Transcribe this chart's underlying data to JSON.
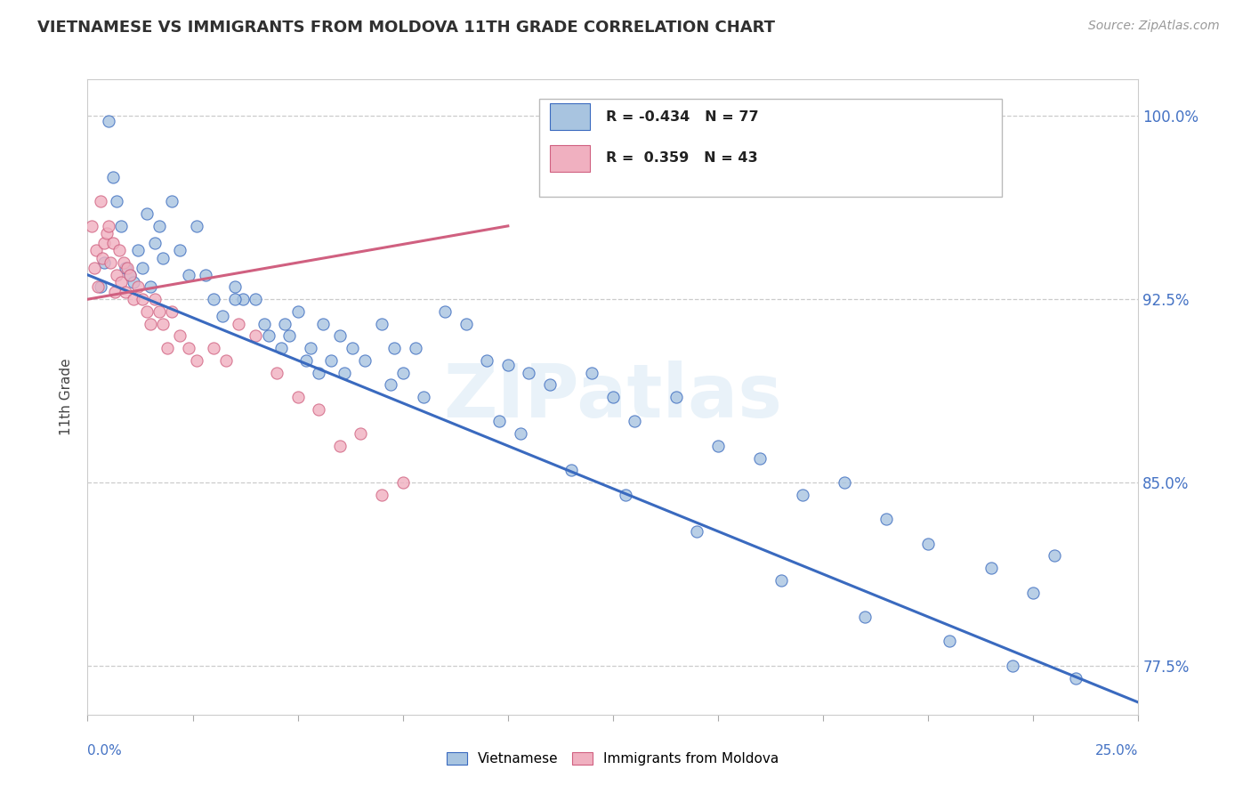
{
  "title": "VIETNAMESE VS IMMIGRANTS FROM MOLDOVA 11TH GRADE CORRELATION CHART",
  "source": "Source: ZipAtlas.com",
  "ylabel": "11th Grade",
  "xlim": [
    0.0,
    25.0
  ],
  "ylim": [
    75.5,
    101.5
  ],
  "yticks": [
    77.5,
    85.0,
    92.5,
    100.0
  ],
  "ytick_labels": [
    "77.5%",
    "85.0%",
    "92.5%",
    "100.0%"
  ],
  "xticks": [
    0.0,
    2.5,
    5.0,
    7.5,
    10.0,
    12.5,
    15.0,
    17.5,
    20.0,
    22.5,
    25.0
  ],
  "legend_blue_label": "Vietnamese",
  "legend_pink_label": "Immigrants from Moldova",
  "R_blue": -0.434,
  "N_blue": 77,
  "R_pink": 0.359,
  "N_pink": 43,
  "blue_color": "#a8c4e0",
  "pink_color": "#f0b0c0",
  "blue_line_color": "#3a6abf",
  "pink_line_color": "#d06080",
  "watermark": "ZIPatlas",
  "blue_line_x": [
    0.0,
    25.0
  ],
  "blue_line_y": [
    93.5,
    76.0
  ],
  "pink_line_x": [
    0.0,
    10.0
  ],
  "pink_line_y": [
    92.5,
    95.5
  ],
  "blue_dots_x": [
    0.3,
    0.4,
    0.5,
    0.6,
    0.7,
    0.8,
    0.9,
    1.0,
    1.1,
    1.2,
    1.3,
    1.4,
    1.5,
    1.6,
    1.7,
    1.8,
    2.0,
    2.2,
    2.4,
    2.6,
    2.8,
    3.0,
    3.2,
    3.5,
    3.7,
    4.0,
    4.3,
    4.7,
    5.0,
    5.3,
    5.6,
    6.0,
    6.3,
    6.6,
    7.0,
    7.3,
    7.5,
    7.8,
    8.5,
    9.0,
    9.5,
    10.0,
    10.5,
    11.0,
    12.0,
    12.5,
    13.0,
    14.0,
    15.0,
    16.0,
    17.0,
    18.0,
    19.0,
    20.0,
    21.5,
    22.5,
    23.0,
    3.5,
    4.2,
    4.6,
    4.8,
    5.2,
    5.5,
    5.8,
    6.1,
    7.2,
    8.0,
    9.8,
    10.3,
    11.5,
    12.8,
    14.5,
    16.5,
    18.5,
    20.5,
    22.0,
    23.5
  ],
  "blue_dots_y": [
    93.0,
    94.0,
    99.8,
    97.5,
    96.5,
    95.5,
    93.8,
    93.5,
    93.2,
    94.5,
    93.8,
    96.0,
    93.0,
    94.8,
    95.5,
    94.2,
    96.5,
    94.5,
    93.5,
    95.5,
    93.5,
    92.5,
    91.8,
    93.0,
    92.5,
    92.5,
    91.0,
    91.5,
    92.0,
    90.5,
    91.5,
    91.0,
    90.5,
    90.0,
    91.5,
    90.5,
    89.5,
    90.5,
    92.0,
    91.5,
    90.0,
    89.8,
    89.5,
    89.0,
    89.5,
    88.5,
    87.5,
    88.5,
    86.5,
    86.0,
    84.5,
    85.0,
    83.5,
    82.5,
    81.5,
    80.5,
    82.0,
    92.5,
    91.5,
    90.5,
    91.0,
    90.0,
    89.5,
    90.0,
    89.5,
    89.0,
    88.5,
    87.5,
    87.0,
    85.5,
    84.5,
    83.0,
    81.0,
    79.5,
    78.5,
    77.5,
    77.0
  ],
  "pink_dots_x": [
    0.1,
    0.15,
    0.2,
    0.25,
    0.3,
    0.35,
    0.4,
    0.45,
    0.5,
    0.55,
    0.6,
    0.65,
    0.7,
    0.75,
    0.8,
    0.85,
    0.9,
    0.95,
    1.0,
    1.1,
    1.2,
    1.3,
    1.4,
    1.5,
    1.6,
    1.7,
    1.8,
    1.9,
    2.0,
    2.2,
    2.4,
    2.6,
    3.0,
    3.3,
    3.6,
    4.0,
    4.5,
    5.0,
    5.5,
    6.0,
    6.5,
    7.0,
    7.5
  ],
  "pink_dots_y": [
    95.5,
    93.8,
    94.5,
    93.0,
    96.5,
    94.2,
    94.8,
    95.2,
    95.5,
    94.0,
    94.8,
    92.8,
    93.5,
    94.5,
    93.2,
    94.0,
    92.8,
    93.8,
    93.5,
    92.5,
    93.0,
    92.5,
    92.0,
    91.5,
    92.5,
    92.0,
    91.5,
    90.5,
    92.0,
    91.0,
    90.5,
    90.0,
    90.5,
    90.0,
    91.5,
    91.0,
    89.5,
    88.5,
    88.0,
    86.5,
    87.0,
    84.5,
    85.0
  ]
}
